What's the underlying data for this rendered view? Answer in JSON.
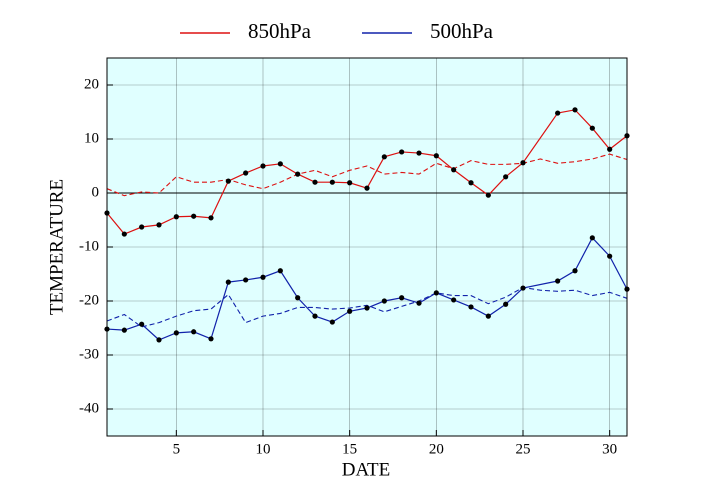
{
  "chart_data": {
    "type": "line",
    "xlabel": "DATE",
    "ylabel": "TEMPERATURE",
    "xlim": [
      1,
      31
    ],
    "ylim": [
      -45,
      25
    ],
    "xticks": [
      5,
      10,
      15,
      20,
      25,
      30
    ],
    "yticks": [
      -40,
      -30,
      -20,
      -10,
      0,
      10,
      20
    ],
    "grid": true,
    "background": "#e0ffff",
    "legend": "top",
    "x": [
      1,
      2,
      3,
      4,
      5,
      6,
      7,
      8,
      9,
      10,
      11,
      12,
      13,
      14,
      15,
      16,
      17,
      18,
      19,
      20,
      21,
      22,
      23,
      24,
      25,
      26,
      27,
      28,
      29,
      30,
      31
    ],
    "series": [
      {
        "name": "850hPa",
        "color": "#dd1111",
        "x": [
          1,
          2,
          3,
          4,
          5,
          6,
          7,
          8,
          9,
          10,
          11,
          12,
          13,
          14,
          15,
          16,
          17,
          18,
          19,
          20,
          21,
          22,
          23,
          24,
          25,
          27,
          28,
          29,
          30,
          31
        ],
        "values": [
          -3.7,
          -7.6,
          -6.3,
          -5.9,
          -4.4,
          -4.3,
          -4.6,
          2.2,
          3.7,
          5.0,
          5.4,
          3.5,
          2.0,
          2.0,
          1.9,
          0.9,
          6.7,
          7.6,
          7.4,
          6.9,
          4.3,
          1.9,
          -0.4,
          3.0,
          5.6,
          14.8,
          15.4,
          12.0,
          8.1,
          10.6
        ],
        "normal": [
          0.8,
          -0.5,
          0.2,
          0,
          3,
          2,
          2,
          2.5,
          1.5,
          0.8,
          2,
          3.5,
          4.2,
          3,
          4.2,
          5,
          3.5,
          3.8,
          3.5,
          5.5,
          4.5,
          6,
          5.3,
          5.3,
          5.5,
          6.3,
          5.5,
          5.8,
          6.3,
          7.2,
          6.2
        ]
      },
      {
        "name": "500hPa",
        "color": "#1122aa",
        "x": [
          1,
          2,
          3,
          4,
          5,
          6,
          7,
          8,
          9,
          10,
          11,
          12,
          13,
          14,
          15,
          16,
          17,
          18,
          19,
          20,
          21,
          22,
          23,
          24,
          25,
          27,
          28,
          29,
          30,
          31
        ],
        "values": [
          -25.2,
          -25.4,
          -24.3,
          -27.2,
          -25.9,
          -25.7,
          -27.0,
          -16.5,
          -16.1,
          -15.6,
          -14.4,
          -19.4,
          -22.8,
          -23.9,
          -21.9,
          -21.3,
          -20.0,
          -19.4,
          -20.4,
          -18.5,
          -19.8,
          -21.1,
          -22.8,
          -20.6,
          -17.6,
          -16.3,
          -14.4,
          -8.3,
          -11.7,
          -17.8
        ],
        "normal": [
          -23.7,
          -22.5,
          -24.8,
          -24,
          -22.8,
          -21.8,
          -21.5,
          -18.8,
          -24,
          -22.8,
          -22.3,
          -21.2,
          -21.2,
          -21.5,
          -21.3,
          -20.8,
          -22,
          -21,
          -20,
          -18.5,
          -19,
          -19,
          -20.5,
          -19.3,
          -17.5,
          -18,
          -18.2,
          -18,
          -19,
          -18.4,
          -19.5
        ]
      }
    ]
  }
}
